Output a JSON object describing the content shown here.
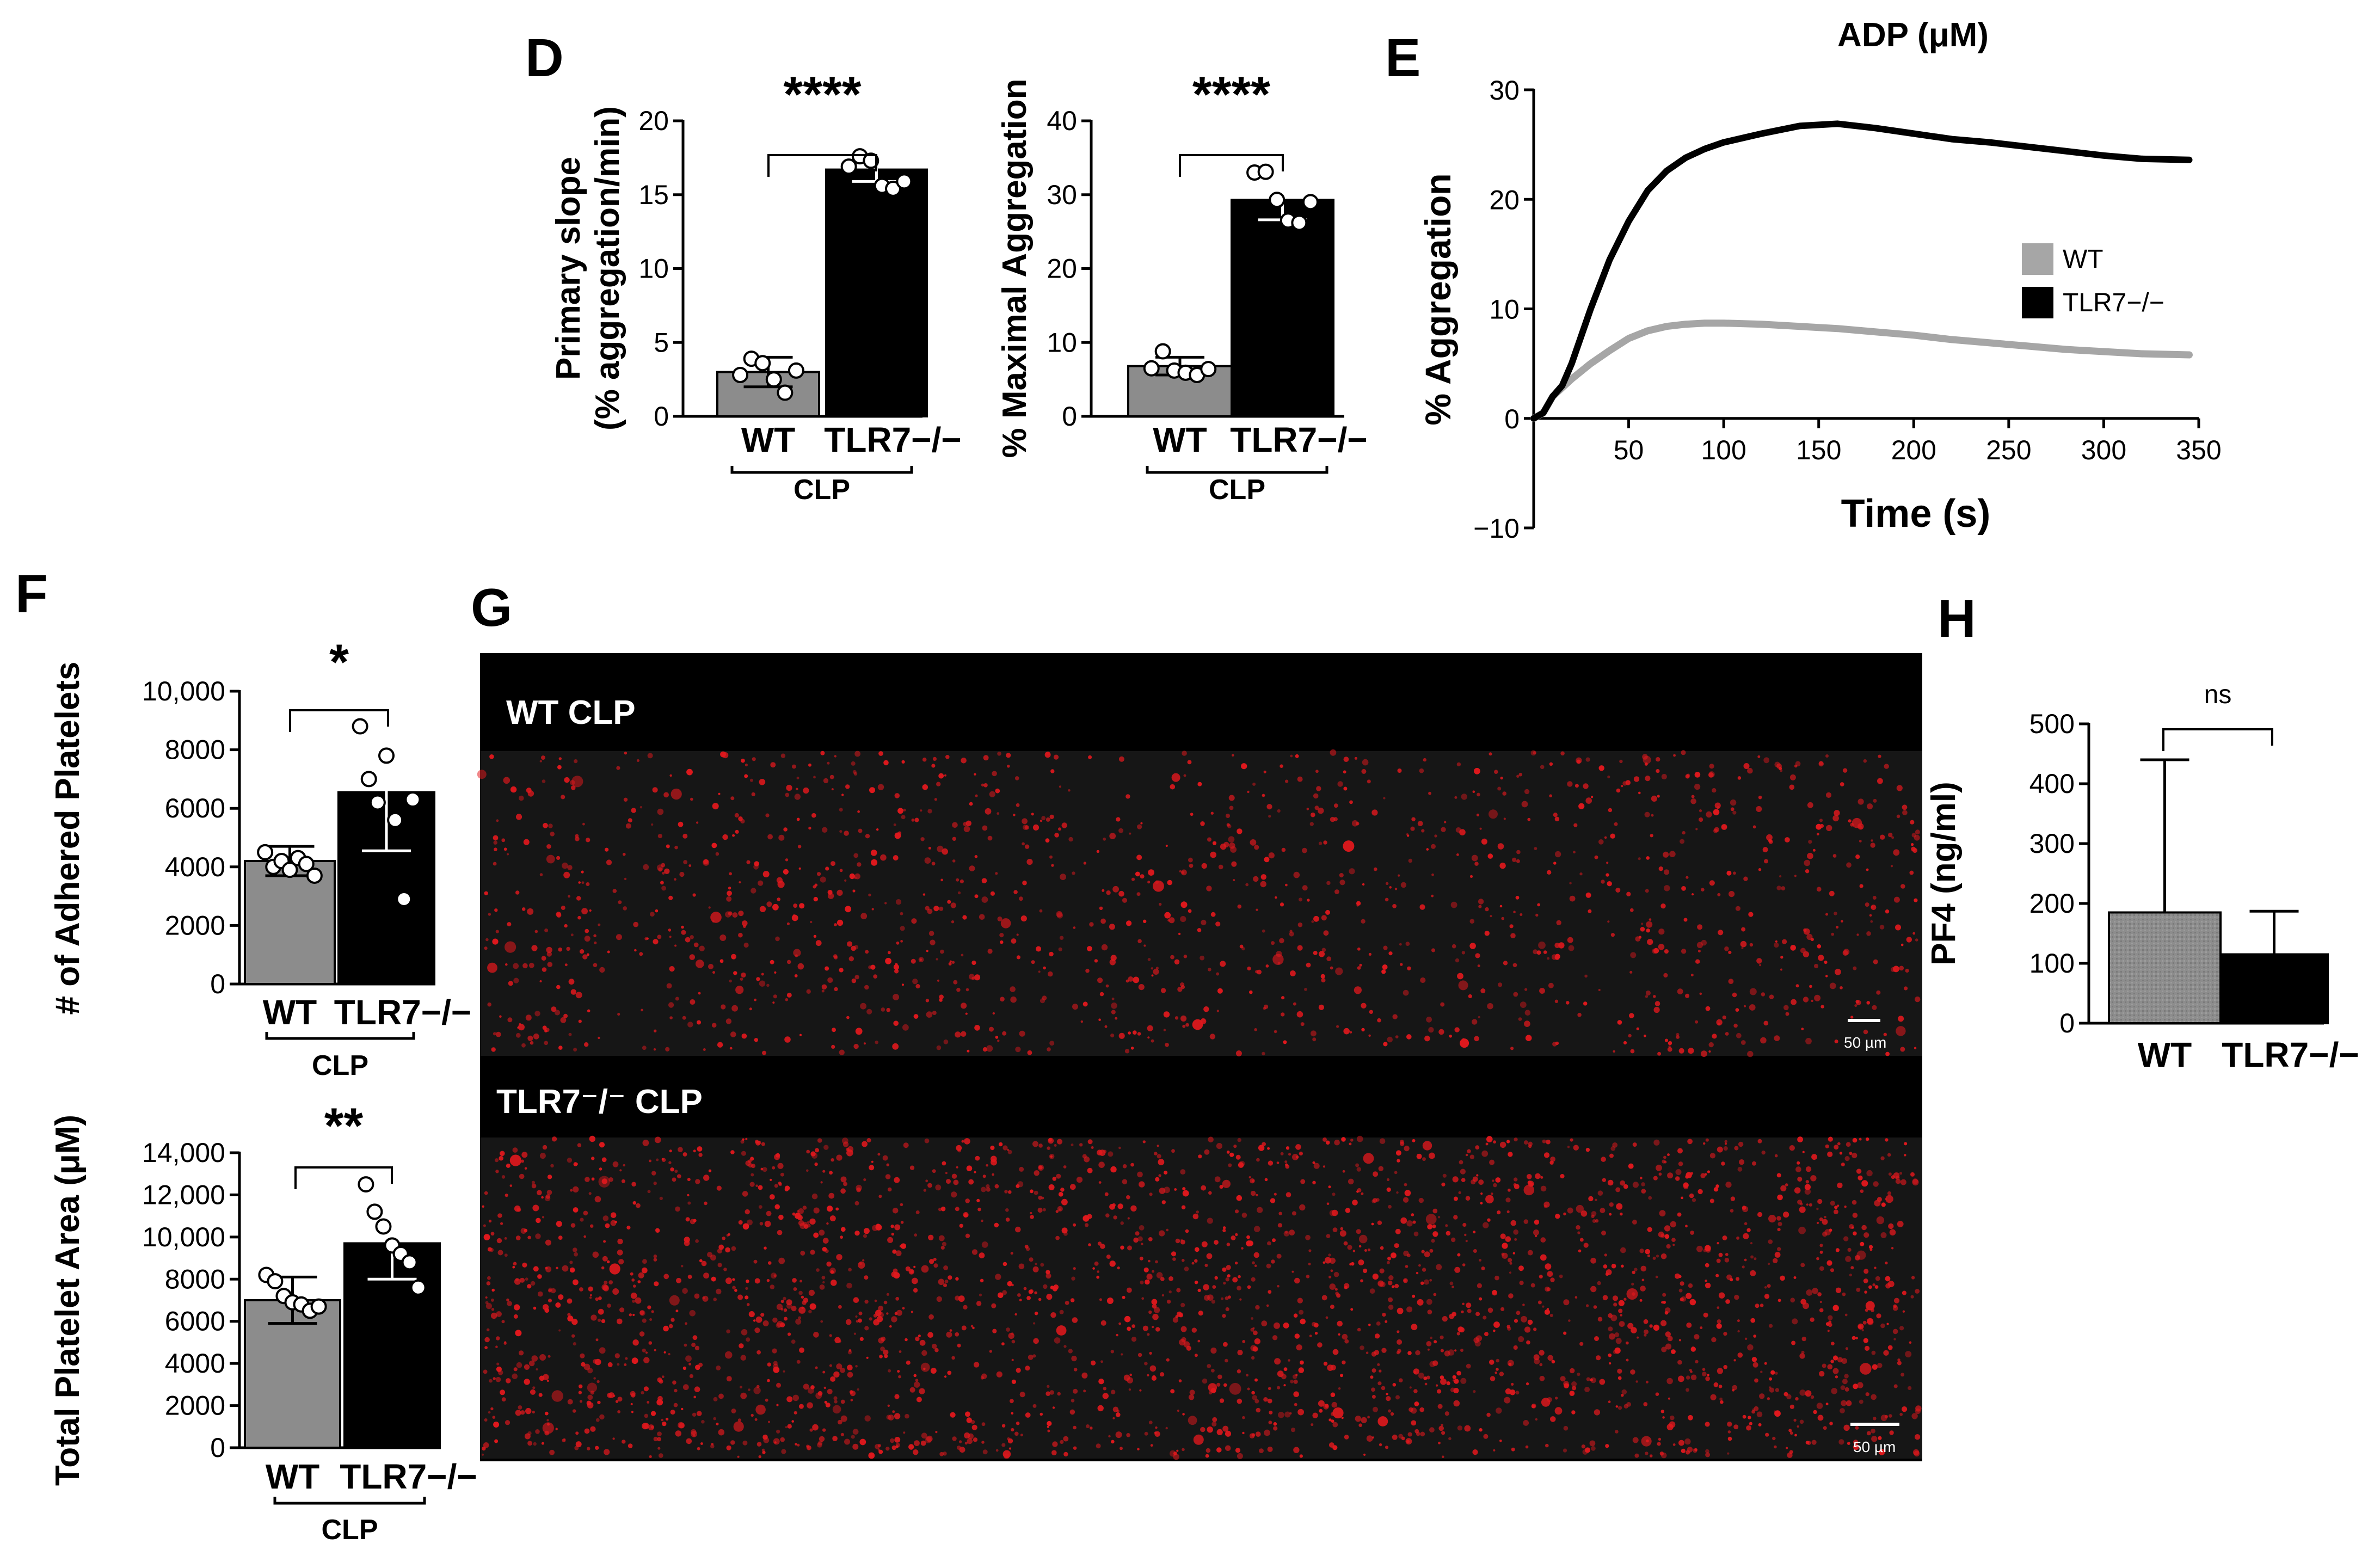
{
  "panels": {
    "D": "D",
    "E": "E",
    "F": "F",
    "G": "G",
    "H": "H"
  },
  "colors": {
    "wt": "#8c8c8c",
    "tlr7": "#000000",
    "wt_line": "#a6a6a6",
    "tlr7_line": "#000000",
    "micrograph_dots": "#e0181d"
  },
  "chart_data": [
    {
      "id": "D1",
      "type": "bar",
      "categories": [
        "WT",
        "TLR7−/−"
      ],
      "values": [
        3.0,
        16.7
      ],
      "error": [
        1.0,
        0.8
      ],
      "points": [
        [
          2.8,
          3.9,
          3.6,
          2.5,
          1.6,
          3.1
        ],
        [
          16.9,
          17.6,
          17.3,
          15.6,
          15.4,
          15.9
        ]
      ],
      "ylabel_line1": "Primary slope",
      "ylabel_line2": "(% aggregation/min)",
      "ylim": [
        0,
        20
      ],
      "yticks": [
        0,
        5,
        10,
        15,
        20
      ],
      "group_label": "CLP",
      "significance": "****"
    },
    {
      "id": "D2",
      "type": "bar",
      "categories": [
        "WT",
        "TLR7−/−"
      ],
      "values": [
        6.8,
        29.3
      ],
      "error": [
        1.2,
        2.7
      ],
      "points": [
        [
          6.5,
          8.8,
          6.2,
          5.9,
          5.6,
          6.4
        ],
        [
          33.0,
          33.1,
          29.3,
          26.5,
          26.2,
          29.0
        ]
      ],
      "ylabel": "% Maximal Aggregation",
      "ylim": [
        0,
        40
      ],
      "yticks": [
        0,
        10,
        20,
        30,
        40
      ],
      "group_label": "CLP",
      "significance": "****"
    },
    {
      "id": "E",
      "type": "line",
      "title": "ADP (μM)",
      "xlabel": "Time (s)",
      "ylabel": "% Aggregation",
      "xlim": [
        0,
        350
      ],
      "ylim": [
        -10,
        30
      ],
      "xticks": [
        50,
        100,
        150,
        200,
        250,
        300,
        350
      ],
      "yticks": [
        -10,
        0,
        10,
        20,
        30
      ],
      "series": [
        {
          "name": "WT",
          "x": [
            0,
            5,
            10,
            15,
            20,
            30,
            40,
            50,
            60,
            70,
            80,
            90,
            100,
            120,
            140,
            160,
            180,
            200,
            220,
            240,
            260,
            280,
            300,
            320,
            345
          ],
          "y": [
            0,
            0.5,
            2.0,
            2.8,
            3.6,
            5.0,
            6.2,
            7.3,
            8.0,
            8.4,
            8.6,
            8.7,
            8.7,
            8.6,
            8.4,
            8.2,
            7.9,
            7.6,
            7.2,
            6.9,
            6.6,
            6.3,
            6.1,
            5.9,
            5.8
          ]
        },
        {
          "name": "TLR7−/−",
          "x": [
            0,
            5,
            10,
            15,
            20,
            30,
            40,
            50,
            60,
            70,
            80,
            90,
            100,
            120,
            140,
            160,
            180,
            200,
            220,
            240,
            260,
            280,
            300,
            320,
            345
          ],
          "y": [
            0,
            0.5,
            2.0,
            3.0,
            5.0,
            10.0,
            14.5,
            18.0,
            20.8,
            22.6,
            23.8,
            24.6,
            25.2,
            26.0,
            26.7,
            26.9,
            26.5,
            26.0,
            25.5,
            25.2,
            24.8,
            24.4,
            24.0,
            23.7,
            23.6
          ]
        }
      ],
      "legend_position": "center-right"
    },
    {
      "id": "F1",
      "type": "bar",
      "categories": [
        "WT",
        "TLR7−/−"
      ],
      "values": [
        4200,
        6550
      ],
      "error": [
        500,
        2000
      ],
      "points": [
        [
          4500,
          4000,
          4200,
          3900,
          4300,
          4100,
          3700
        ],
        [
          8800,
          7000,
          6200,
          7800,
          5600,
          2900,
          6300
        ]
      ],
      "ylabel": "# of Adhered Platelets",
      "ylim": [
        0,
        10000
      ],
      "yticks": [
        0,
        2000,
        4000,
        6000,
        8000,
        10000
      ],
      "ytick_labels": [
        "0",
        "2000",
        "4000",
        "6000",
        "8000",
        "10,000"
      ],
      "group_label": "CLP",
      "significance": "*"
    },
    {
      "id": "F2",
      "type": "bar",
      "categories": [
        "WT",
        "TLR7−/−"
      ],
      "values": [
        7000,
        9700
      ],
      "error": [
        1100,
        1700
      ],
      "points": [
        [
          8200,
          7900,
          7200,
          6900,
          6800,
          6500,
          6700
        ],
        [
          12500,
          11200,
          10500,
          9600,
          9200,
          8800,
          7600
        ]
      ],
      "ylabel": "Total Platelet Area (μM)",
      "ylim": [
        0,
        14000
      ],
      "yticks": [
        0,
        2000,
        4000,
        6000,
        8000,
        10000,
        12000,
        14000
      ],
      "ytick_labels": [
        "0",
        "2000",
        "4000",
        "6000",
        "8000",
        "10,000",
        "12,000",
        "14,000"
      ],
      "group_label": "CLP",
      "significance": "**"
    },
    {
      "id": "H",
      "type": "bar",
      "categories": [
        "WT",
        "TLR7−/−"
      ],
      "values": [
        185,
        115
      ],
      "error": [
        255,
        72
      ],
      "ylabel": "PF4 (ng/ml)",
      "ylim": [
        0,
        500
      ],
      "yticks": [
        0,
        100,
        200,
        300,
        400,
        500
      ],
      "significance": "ns"
    }
  ],
  "micrographs": {
    "top_title": "WT CLP",
    "bottom_title": "TLR7⁻/⁻ CLP",
    "scale_label": "50 µm"
  }
}
